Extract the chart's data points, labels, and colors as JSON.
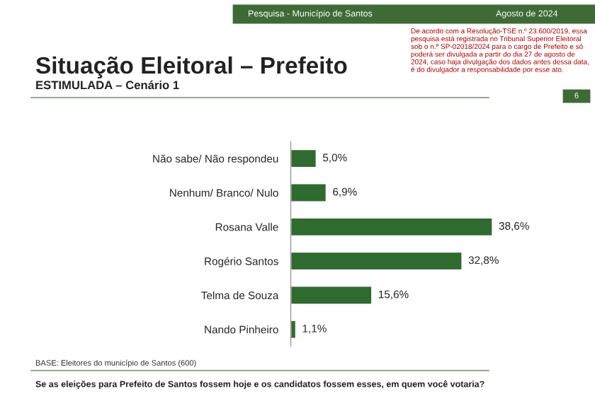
{
  "chart_data": {
    "type": "bar",
    "orientation": "horizontal",
    "title": "Situação Eleitoral – Prefeito",
    "subtitle": "ESTIMULADA – Cenário 1",
    "categories": [
      "Não sabe/ Não respondeu",
      "Nenhum/ Branco/ Nulo",
      "Rosana Valle",
      "Rogério Santos",
      "Telma de Souza",
      "Nando Pinheiro"
    ],
    "values": [
      5.0,
      6.9,
      38.6,
      32.8,
      15.6,
      1.1
    ],
    "value_labels": [
      "5,0%",
      "6,9%",
      "38,6%",
      "32,8%",
      "15,6%",
      "1,1%"
    ],
    "color": "#2f6b2f",
    "tick_labels": "y",
    "annotations": [
      "Pesquisa - Município de Santos",
      "Agosto de 2024",
      "De acordo com a Resolução-TSE n.º 23.600/2019, essa pesquisa está registrada no Tribunal Superior Eleitoral sob o n.º SP-02018/2024 para o cargo de Prefeito e só poderá ser divulgada a partir do dia 27 de agosto de 2024, caso haja divulgação dos dados antes dessa data, é do divulgador a responsabilidade por esse ato.",
      "6",
      "BASE: Eleitores do município de Santos (600)",
      "Se as eleições para Prefeito de Santos fossem hoje e os candidatos fossem esses, em quem você votaria?"
    ]
  }
}
